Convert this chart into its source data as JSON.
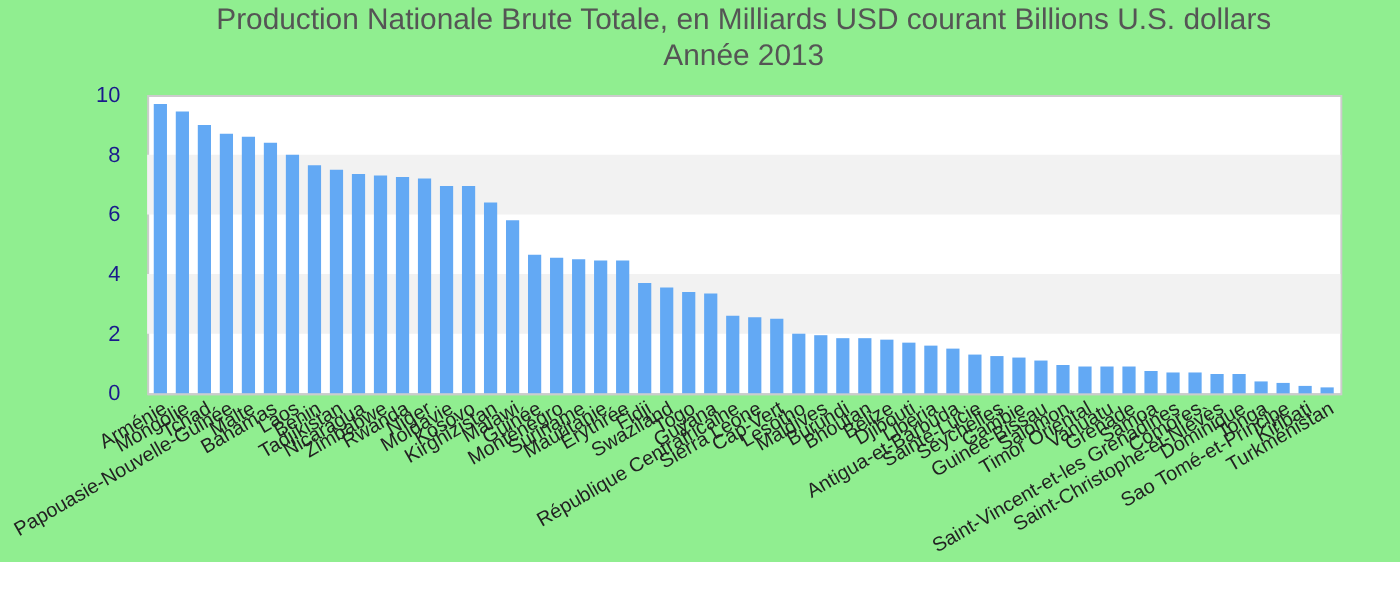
{
  "chart_data": {
    "type": "bar",
    "title": "Production Nationale Brute Totale, en Milliards USD courant Billions U.S. dollars",
    "subtitle": "Année 2013",
    "categories": [
      "Arménie",
      "Mongolie",
      "Tchad",
      "Papouasie-Nouvelle-Guinée",
      "Malte",
      "Bahamas",
      "Laos",
      "Bénin",
      "Tadjikistan",
      "Nicaragua",
      "Zimbabwe",
      "Rwanda",
      "Niger",
      "Moldavie",
      "Kosovo",
      "Kirghizistan",
      "Malawi",
      "Guinée",
      "Monténégro",
      "Suriname",
      "Mauritanie",
      "Érythrée",
      "Fidji",
      "Swaziland",
      "Togo",
      "Guyana",
      "République Centrafricaine",
      "Sierra Leone",
      "Cap-Vert",
      "Lesotho",
      "Maldives",
      "Burundi",
      "Bhoutan",
      "Belize",
      "Djibouti",
      "Liberia",
      "Antigua-et-Barbuda",
      "Sainte-Lucie",
      "Seychelles",
      "Gambie",
      "Guinée-Bissau",
      "Salomon",
      "Timor Oriental",
      "Vanuatu",
      "Grenade",
      "Samoa",
      "Saint-Vincent-et-les Grenadines",
      "Comores",
      "Saint-Christophe-et-Niévès",
      "Dominique",
      "Tonga",
      "Sao Tomé-et-Principe",
      "Kiribati",
      "Turkménistan"
    ],
    "values": [
      9.7,
      9.45,
      9.0,
      8.7,
      8.6,
      8.4,
      8.0,
      7.65,
      7.5,
      7.35,
      7.3,
      7.25,
      7.2,
      6.95,
      6.95,
      6.4,
      5.8,
      4.65,
      4.55,
      4.5,
      4.45,
      4.45,
      3.7,
      3.55,
      3.4,
      3.35,
      2.6,
      2.55,
      2.5,
      2.0,
      1.95,
      1.85,
      1.85,
      1.8,
      1.7,
      1.6,
      1.5,
      1.3,
      1.25,
      1.2,
      1.1,
      0.95,
      0.9,
      0.9,
      0.9,
      0.75,
      0.7,
      0.7,
      0.65,
      0.65,
      0.4,
      0.35,
      0.25,
      0.2
    ],
    "color": "#63a9f4",
    "ylim": [
      0,
      10
    ],
    "yticks": [
      0,
      2,
      4,
      6,
      8,
      10
    ],
    "grid": false,
    "bands": [
      {
        "axis": "y",
        "from": 2,
        "to": 4,
        "color": "#f2f2f2"
      },
      {
        "axis": "y",
        "from": 6,
        "to": 8,
        "color": "#f2f2f2"
      }
    ]
  }
}
